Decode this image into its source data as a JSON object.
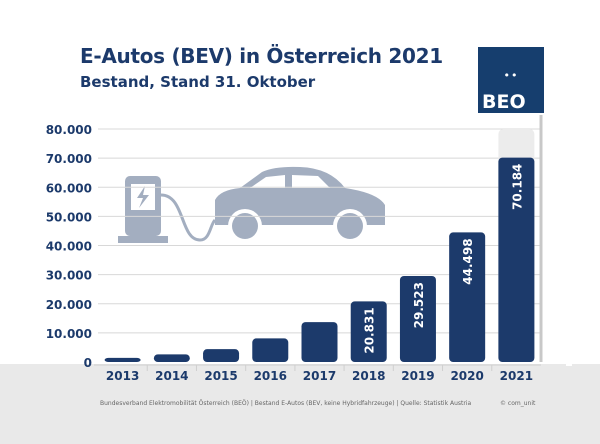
{
  "title": "E-Autos (BEV) in Österreich 2021",
  "subtitle": "Bestand, Stand 31. Oktober",
  "logo": {
    "dots": "••",
    "text": "BEO"
  },
  "footer": {
    "source": "Bundesverband Elektromobilität Österreich (BEÖ) | Bestand E-Autos (BEV, keine Hybridfahrzeuge) | Quelle: Statistik Austria",
    "credit": "© com_unit"
  },
  "colors": {
    "bar": "#1c3a6b",
    "icons": "#a3aec0",
    "ground": "#e9e9e9"
  },
  "icons": [
    "ev-charger-icon",
    "car-icon",
    "tree-icon"
  ],
  "chart_data": {
    "type": "bar",
    "categories": [
      "2013",
      "2014",
      "2015",
      "2016",
      "2017",
      "2018",
      "2019",
      "2020",
      "2021"
    ],
    "values": [
      1400,
      2600,
      4400,
      8100,
      13700,
      20831,
      29523,
      44498,
      70184
    ],
    "data_labels": [
      "",
      "",
      "",
      "",
      "",
      "20.831",
      "29.523",
      "44.498",
      "70.184"
    ],
    "ylim": [
      0,
      80000
    ],
    "yticks": [
      "0",
      "10.000",
      "20.000",
      "30.000",
      "40.000",
      "50.000",
      "60.000",
      "70.000",
      "80.000"
    ],
    "grid": true,
    "xlabel": "",
    "ylabel": ""
  }
}
